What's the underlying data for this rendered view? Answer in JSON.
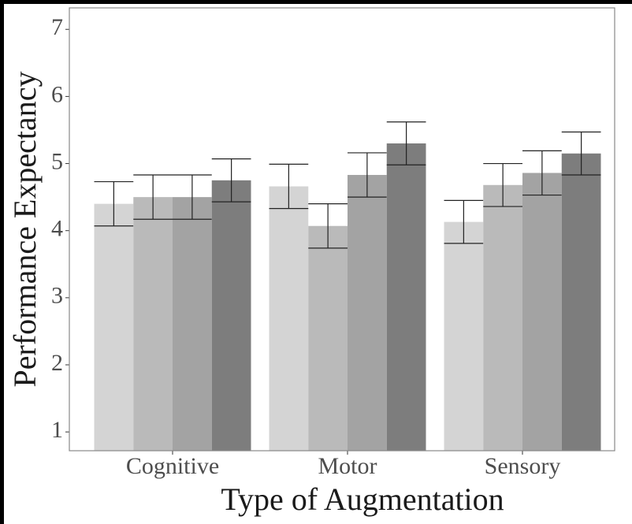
{
  "chart_data": {
    "type": "bar",
    "xlabel": "Type of Augmentation",
    "ylabel": "Performance Expectancy",
    "categories": [
      "Cognitive",
      "Motor",
      "Sensory"
    ],
    "series": [
      {
        "color": "#d4d4d4",
        "values": [
          4.4,
          4.66,
          4.13
        ],
        "errors": [
          0.33,
          0.33,
          0.32
        ]
      },
      {
        "color": "#bababa",
        "values": [
          4.5,
          4.07,
          4.68
        ],
        "errors": [
          0.33,
          0.33,
          0.32
        ]
      },
      {
        "color": "#a3a3a3",
        "values": [
          4.5,
          4.83,
          4.86
        ],
        "errors": [
          0.33,
          0.33,
          0.33
        ]
      },
      {
        "color": "#7d7d7d",
        "values": [
          4.75,
          5.3,
          5.15
        ],
        "errors": [
          0.32,
          0.32,
          0.32
        ]
      }
    ],
    "ylim": [
      0.72,
      7.32
    ],
    "yticks": [
      1,
      2,
      3,
      4,
      5,
      6,
      7
    ]
  }
}
